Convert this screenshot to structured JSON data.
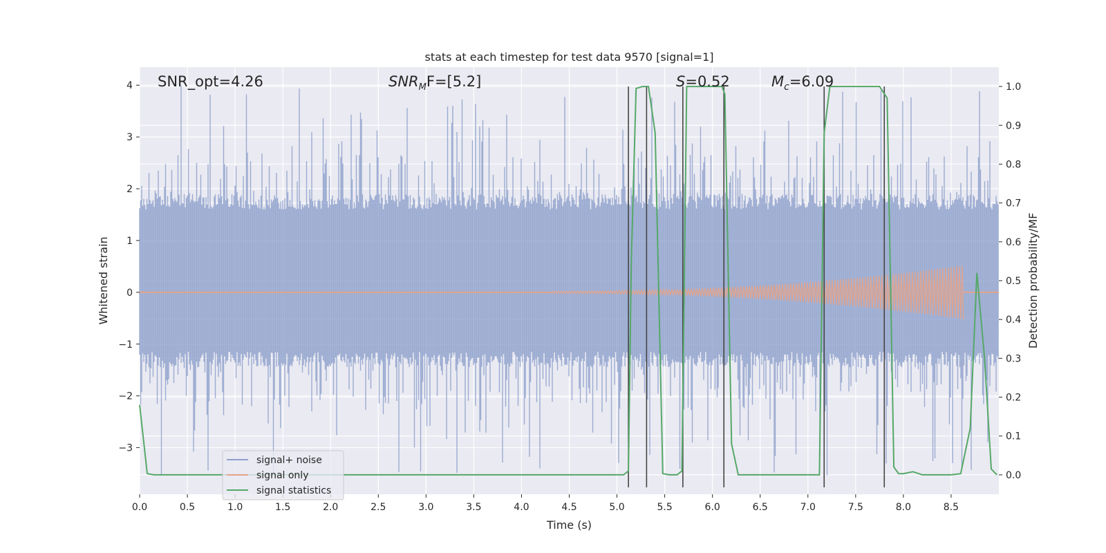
{
  "chart_data": {
    "type": "line",
    "title": "stats at each timestep for test data 9570 [signal=1]",
    "xlabel": "Time (s)",
    "ylabel_left": "Whitened strain",
    "ylabel_right": "Detection probability/MF",
    "xlim": [
      0.0,
      9.0
    ],
    "ylim_left": [
      -3.9,
      4.35
    ],
    "ylim_right": [
      -0.05,
      1.05
    ],
    "x_ticks": [
      "0.0",
      "0.5",
      "1.0",
      "1.5",
      "2.0",
      "2.5",
      "3.0",
      "3.5",
      "4.0",
      "4.5",
      "5.0",
      "5.5",
      "6.0",
      "6.5",
      "7.0",
      "7.5",
      "8.0",
      "8.5"
    ],
    "x_tick_values": [
      0,
      0.5,
      1,
      1.5,
      2,
      2.5,
      3,
      3.5,
      4,
      4.5,
      5,
      5.5,
      6,
      6.5,
      7,
      7.5,
      8,
      8.5
    ],
    "y_left_ticks": [
      "−3",
      "−2",
      "−1",
      "0",
      "1",
      "2",
      "3",
      "4"
    ],
    "y_left_tick_values": [
      -3,
      -2,
      -1,
      0,
      1,
      2,
      3,
      4
    ],
    "y_right_ticks": [
      "0.0",
      "0.1",
      "0.2",
      "0.3",
      "0.4",
      "0.5",
      "0.6",
      "0.7",
      "0.8",
      "0.9",
      "1.0"
    ],
    "y_right_tick_values": [
      0,
      0.1,
      0.2,
      0.3,
      0.4,
      0.5,
      0.6,
      0.7,
      0.8,
      0.9,
      1.0
    ],
    "grid": true,
    "legend_placement": "lower-left",
    "annotations": {
      "snr_opt": "SNR_opt=4.26",
      "snr_mf_main": "SNR",
      "snr_mf_sub": "M",
      "snr_mf_rest": "F=[5.2]",
      "s_var": "S",
      "s_rest": "=0.52",
      "mc_main": "M",
      "mc_sub": "c",
      "mc_rest": "=6.09"
    },
    "series": [
      {
        "name": "signal+ noise",
        "color": "#8da0cb",
        "description_kind": "noise band",
        "band_typical": [
          -1.3,
          1.75
        ],
        "band_extreme": [
          -3.6,
          4.0
        ]
      },
      {
        "name": "signal only",
        "color": "#e5a388",
        "description_kind": "chirp",
        "start_x": 4.3,
        "end_x": 8.63,
        "peak_amplitude": 0.5
      },
      {
        "name": "signal statistics",
        "color": "#55a868",
        "axis": "right",
        "x": [
          0.0,
          0.08,
          0.15,
          0.5,
          1.0,
          2.0,
          3.0,
          4.0,
          5.0,
          5.07,
          5.12,
          5.15,
          5.2,
          5.27,
          5.33,
          5.4,
          5.48,
          5.55,
          5.63,
          5.68,
          5.73,
          6.1,
          6.13,
          6.2,
          6.27,
          6.5,
          7.0,
          7.12,
          7.17,
          7.23,
          7.3,
          7.75,
          7.83,
          7.9,
          7.95,
          8.0,
          8.1,
          8.2,
          8.3,
          8.5,
          8.6,
          8.7,
          8.77,
          8.85,
          8.92,
          8.98
        ],
        "y": [
          0.18,
          0.003,
          0.0,
          0.0,
          0.0,
          0.0,
          0.0,
          0.0,
          0.0,
          0.0,
          0.01,
          0.55,
          0.995,
          1.0,
          1.0,
          0.88,
          0.003,
          0.0,
          0.0,
          0.01,
          1.0,
          1.0,
          0.98,
          0.08,
          0.0,
          0.0,
          0.0,
          0.0,
          0.88,
          1.0,
          1.0,
          1.0,
          0.97,
          0.02,
          0.003,
          0.003,
          0.008,
          0.0,
          0.0,
          0.0,
          0.003,
          0.12,
          0.52,
          0.3,
          0.015,
          0.0
        ]
      }
    ],
    "vertical_lines": [
      {
        "x": 5.12,
        "y_range": [
          -0.05,
          1.0
        ]
      },
      {
        "x": 5.31,
        "y_range": [
          -0.05,
          1.0
        ]
      },
      {
        "x": 5.69,
        "y_range": [
          -0.05,
          1.0
        ]
      },
      {
        "x": 6.12,
        "y_range": [
          -0.05,
          1.0
        ]
      },
      {
        "x": 7.17,
        "y_range": [
          -0.05,
          1.0
        ]
      },
      {
        "x": 7.8,
        "y_range": [
          -0.05,
          1.0
        ]
      }
    ]
  },
  "legend": {
    "items": [
      {
        "label": "signal+ noise",
        "color": "#8da0cb"
      },
      {
        "label": "signal only",
        "color": "#e5a388"
      },
      {
        "label": "signal statistics",
        "color": "#55a868"
      }
    ]
  }
}
